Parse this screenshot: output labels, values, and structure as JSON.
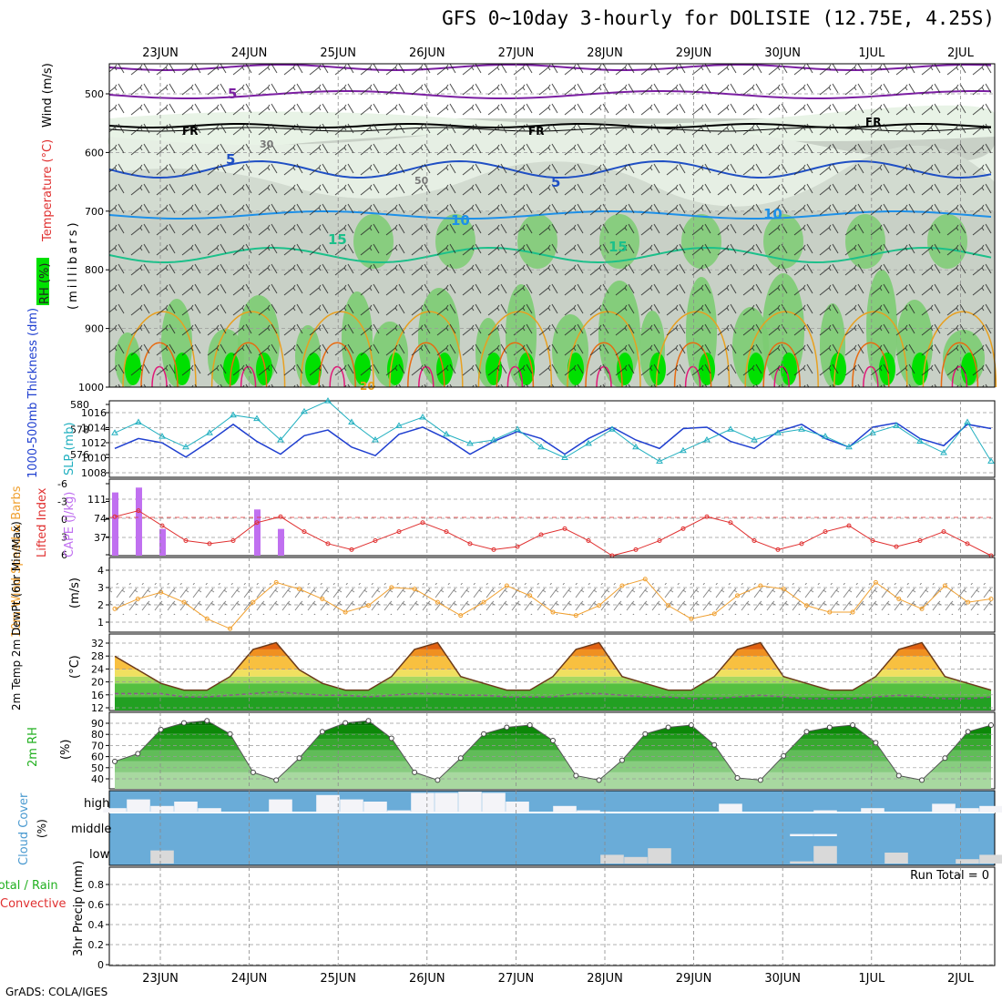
{
  "title": "GFS 0~10day 3-hourly for DOLISIE (12.75E, 4.25S)",
  "credit": "GrADS: COLA/IGES",
  "colors": {
    "rh_light": "#e8f3e6",
    "rh_mid": "#cfd8cd",
    "rh_dark": "#c3ccc1",
    "rh_green": "#7ccc72",
    "rh_bright": "#00e000",
    "temp_neg": "#7b1fa2",
    "temp_5": "#1f4fc4",
    "temp_10": "#1e90e8",
    "temp_15": "#1cc08a",
    "temp_20": "#e8a020",
    "temp_25": "#e86a10",
    "temp_30": "#e01878",
    "thickness": "#1f3fd0",
    "slp": "#22b0c0",
    "lifted": "#e03030",
    "cape": "#c070f0",
    "wind10": "#f0a030",
    "rh2m_fill": "#22b020",
    "cloud": "#6aacd8",
    "cloud_low": "#d9d9d9"
  },
  "dates": [
    "23JUN",
    "24JUN",
    "25JUN",
    "26JUN",
    "27JUN",
    "28JUN",
    "29JUN",
    "30JUN",
    "1JUL",
    "2JUL"
  ],
  "panels": {
    "upper": {
      "label_rh": "RH (%)",
      "label_temp": "Temperature (°C)",
      "label_wind": "Wind (m/s)",
      "label_axis": "(millibars)",
      "yticks": [
        "500",
        "600",
        "700",
        "800",
        "900",
        "1000"
      ],
      "contour_labels": [
        "5",
        "FR",
        "FR",
        "FR",
        "5",
        "5",
        "10",
        "10",
        "15",
        "15",
        "30",
        "50",
        "20"
      ]
    },
    "thickness": {
      "label_left": "1000-500mb Thickness (dm)",
      "label_right": "SLP (mb)",
      "yticks_left": [
        "580",
        "578",
        "576"
      ],
      "yticks_right": [
        "1016",
        "1014",
        "1012",
        "1010",
        "1008"
      ]
    },
    "cape": {
      "label_left": "Lifted Index",
      "label_right": "CAPE (J/kg)",
      "yticks_left": [
        "-6",
        "-3",
        "0",
        "3",
        "6"
      ],
      "yticks_right": [
        "111",
        "74",
        "37"
      ]
    },
    "wind10": {
      "label": "10m Wind Speed & Barbs",
      "unit": "(m/s)",
      "yticks": [
        "4",
        "3",
        "2",
        "1"
      ]
    },
    "temp2m": {
      "label": "2m Temp 2m DewPt (6hr Min/Max)",
      "unit": "(°C)",
      "yticks": [
        "32",
        "28",
        "24",
        "20",
        "16",
        "12"
      ]
    },
    "rh2m": {
      "label": "2m RH",
      "unit": "(%)",
      "yticks": [
        "90",
        "80",
        "70",
        "60",
        "50",
        "40"
      ]
    },
    "cloud": {
      "label": "Cloud Cover",
      "unit": "(%)",
      "levels": [
        "high",
        "middle",
        "low"
      ]
    },
    "precip": {
      "label_a": "Total / Rain",
      "label_b": "Convective",
      "label_axis": "3hr Precip (mm)",
      "yticks": [
        "0.8",
        "0.6",
        "0.4",
        "0.2",
        "0"
      ],
      "run_total": "Run Total = 0"
    }
  },
  "chart_data": [
    {
      "type": "line",
      "name": "thickness_slp",
      "x": [
        "23JUN 00",
        "23JUN 06",
        "23JUN 12",
        "23JUN 18",
        "24JUN 00",
        "24JUN 06",
        "24JUN 12",
        "24JUN 18",
        "25JUN 00",
        "25JUN 06",
        "25JUN 12",
        "25JUN 18",
        "26JUN 00",
        "26JUN 06",
        "26JUN 12",
        "26JUN 18",
        "27JUN 00",
        "27JUN 06",
        "27JUN 12",
        "27JUN 18",
        "28JUN 00",
        "28JUN 06",
        "28JUN 12",
        "28JUN 18",
        "29JUN 00",
        "29JUN 06",
        "29JUN 12",
        "29JUN 18",
        "30JUN 00",
        "30JUN 06",
        "30JUN 12",
        "30JUN 18",
        "1JUL 00",
        "1JUL 06",
        "1JUL 12",
        "1JUL 18",
        "2JUL 00",
        "2JUL 06"
      ],
      "series": [
        {
          "name": "1000-500mb Thickness (dm)",
          "values": [
            576.9,
            577.6,
            577.3,
            576.3,
            577.4,
            578.6,
            577.4,
            576.5,
            577.8,
            578.2,
            577.0,
            576.4,
            577.9,
            578.4,
            577.6,
            576.5,
            577.4,
            578.1,
            577.6,
            576.5,
            577.6,
            578.4,
            577.5,
            576.9,
            578.3,
            578.4,
            577.4,
            576.9,
            578.1,
            578.6,
            577.6,
            577.0,
            578.4,
            578.7,
            577.6,
            577.1,
            578.6,
            578.3
          ]
        },
        {
          "name": "SLP (mb)",
          "values": [
            1013.0,
            1014.5,
            1012.5,
            1011.0,
            1013.0,
            1015.5,
            1015.0,
            1012.0,
            1016.0,
            1017.5,
            1014.5,
            1012.0,
            1014.0,
            1015.2,
            1012.8,
            1011.5,
            1012.0,
            1013.5,
            1011.0,
            1009.5,
            1011.5,
            1013.5,
            1011.0,
            1009.0,
            1010.5,
            1012.0,
            1013.5,
            1012.0,
            1013.0,
            1013.5,
            1012.5,
            1011.0,
            1013.0,
            1014.0,
            1011.8,
            1010.2,
            1014.5,
            1009.0
          ]
        }
      ],
      "ylim_left": [
        575,
        580
      ],
      "ylim_right": [
        1007,
        1017
      ]
    },
    {
      "type": "bar",
      "name": "cape_lifted",
      "series": [
        {
          "name": "Lifted Index",
          "values": [
            -0.5,
            -1.5,
            1,
            3.5,
            4,
            3.5,
            0.5,
            -0.5,
            2,
            4,
            5,
            3.5,
            2,
            0.5,
            2,
            4,
            5,
            4.5,
            2.5,
            1.5,
            3.5,
            6,
            5,
            3.5,
            1.5,
            -0.5,
            0.5,
            3.5,
            5,
            4,
            2,
            1,
            3.5,
            4.5,
            3.5,
            2,
            4,
            6
          ]
        },
        {
          "name": "CAPE (J/kg)",
          "values": [
            130,
            140,
            55,
            0,
            0,
            0,
            95,
            55,
            0,
            0,
            0,
            0,
            0,
            0,
            0,
            0,
            0,
            0,
            0,
            0,
            0,
            0,
            0,
            0,
            0,
            0,
            0,
            0,
            0,
            0,
            0,
            0,
            0,
            0,
            0,
            0,
            0,
            0
          ]
        }
      ],
      "ylim_left": [
        6,
        -6
      ],
      "ylim_right": [
        0,
        148
      ]
    },
    {
      "type": "line",
      "name": "wind10m",
      "series": [
        {
          "name": "10m Wind Speed (m/s)",
          "values": [
            1.8,
            2.4,
            2.8,
            2.2,
            1.2,
            0.6,
            2.2,
            3.4,
            3.0,
            2.4,
            1.6,
            2.0,
            3.1,
            3.0,
            2.2,
            1.4,
            2.2,
            3.2,
            2.6,
            1.6,
            1.4,
            2.0,
            3.2,
            3.6,
            2.0,
            1.2,
            1.5,
            2.6,
            3.2,
            3.0,
            2.0,
            1.6,
            1.6,
            3.4,
            2.4,
            1.8,
            3.2,
            2.2,
            2.4
          ]
        }
      ],
      "ylim": [
        0.5,
        4.8
      ]
    },
    {
      "type": "area",
      "name": "temp2m",
      "series": [
        {
          "name": "2m Temp (°C)",
          "values": [
            28,
            24,
            20,
            18,
            18,
            22,
            30,
            32,
            24,
            20,
            18,
            18,
            22,
            30,
            32,
            22,
            20,
            18,
            18,
            22,
            30,
            32,
            22,
            20,
            18,
            18,
            22,
            30,
            32,
            22,
            20,
            18,
            18,
            22,
            30,
            32,
            22,
            20,
            18
          ]
        },
        {
          "name": "2m DewPt (°C)",
          "values": [
            17,
            17,
            17,
            16,
            16,
            16.5,
            17,
            17.5,
            17,
            16.5,
            16.5,
            16,
            16.5,
            17,
            17,
            16.5,
            16.5,
            16,
            16,
            16,
            17,
            17,
            16.5,
            16,
            16,
            15.5,
            15.5,
            16,
            16.5,
            16,
            15.5,
            15.5,
            15.5,
            16,
            16.5,
            16,
            15.5,
            15.5,
            16
          ]
        }
      ],
      "ylim": [
        12,
        34
      ]
    },
    {
      "type": "area",
      "name": "rh2m",
      "series": [
        {
          "name": "2m RH (%)",
          "values": [
            55,
            62,
            84,
            90,
            92,
            80,
            45,
            38,
            58,
            82,
            90,
            92,
            76,
            45,
            38,
            58,
            80,
            86,
            88,
            74,
            42,
            38,
            56,
            80,
            86,
            88,
            70,
            40,
            38,
            60,
            82,
            86,
            88,
            72,
            42,
            38,
            58,
            82,
            88
          ]
        }
      ],
      "ylim": [
        30,
        98
      ]
    },
    {
      "type": "bar",
      "name": "cloud_cover",
      "series": [
        {
          "name": "high (%)",
          "values": [
            20,
            60,
            30,
            50,
            20,
            0,
            0,
            60,
            0,
            80,
            60,
            50,
            10,
            90,
            90,
            95,
            90,
            50,
            0,
            30,
            10,
            0,
            0,
            0,
            0,
            0,
            40,
            0,
            0,
            0,
            10,
            0,
            20,
            0,
            0,
            40,
            20,
            30
          ]
        },
        {
          "name": "middle (%)",
          "values": [
            0,
            0,
            0,
            0,
            0,
            0,
            0,
            0,
            0,
            0,
            0,
            0,
            0,
            0,
            0,
            0,
            0,
            0,
            0,
            0,
            0,
            0,
            0,
            0,
            0,
            0,
            0,
            0,
            0,
            10,
            10,
            0,
            0,
            0,
            0,
            0,
            0,
            0
          ]
        },
        {
          "name": "low (%)",
          "values": [
            0,
            0,
            60,
            0,
            0,
            0,
            0,
            0,
            0,
            0,
            0,
            0,
            0,
            0,
            0,
            0,
            0,
            0,
            0,
            0,
            0,
            40,
            30,
            70,
            0,
            0,
            0,
            0,
            0,
            10,
            80,
            0,
            0,
            50,
            0,
            0,
            20,
            40
          ]
        }
      ],
      "ylim": [
        0,
        100
      ]
    },
    {
      "type": "bar",
      "name": "precip_3hr",
      "series": [
        {
          "name": "3hr Precip (mm)",
          "values": []
        }
      ],
      "ylim": [
        0,
        0.95
      ]
    }
  ]
}
